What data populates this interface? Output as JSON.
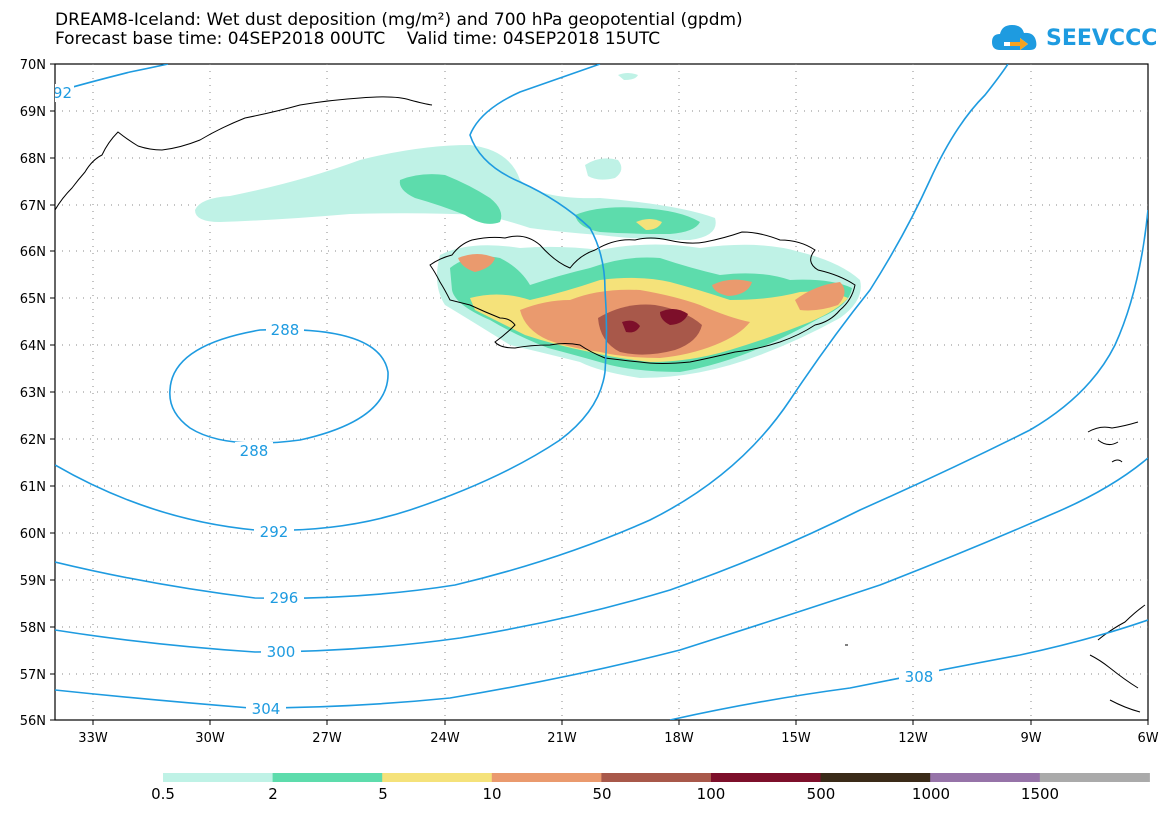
{
  "title": {
    "line1": "DREAM8-Iceland: Wet dust deposition (mg/m²) and 700 hPa geopotential (gpdm)",
    "line2": "Forecast base time: 04SEP2018 00UTC    Valid time: 04SEP2018 15UTC"
  },
  "logo": {
    "text": "SEEVCCC",
    "icon": "cloud-icon",
    "color": "#1e9be0"
  },
  "map": {
    "lat_labels": [
      "70N",
      "69N",
      "68N",
      "67N",
      "66N",
      "65N",
      "64N",
      "63N",
      "62N",
      "61N",
      "60N",
      "59N",
      "58N",
      "57N",
      "56N"
    ],
    "lon_labels": [
      "33W",
      "30W",
      "27W",
      "24W",
      "21W",
      "18W",
      "15W",
      "12W",
      "9W",
      "6W"
    ],
    "contour_color": "#1e9be0",
    "contour_labels": [
      "92",
      "288",
      "288",
      "292",
      "296",
      "300",
      "304",
      "308"
    ]
  },
  "legend": {
    "labels": [
      "0.5",
      "2",
      "5",
      "10",
      "50",
      "100",
      "500",
      "1000",
      "1500"
    ],
    "colors": [
      "#bff2e6",
      "#5ddcac",
      "#f5e27a",
      "#ea9a6e",
      "#a8584a",
      "#7d0f2a",
      "#3a2a18",
      "#9673a8",
      "#aaaaaa"
    ]
  }
}
